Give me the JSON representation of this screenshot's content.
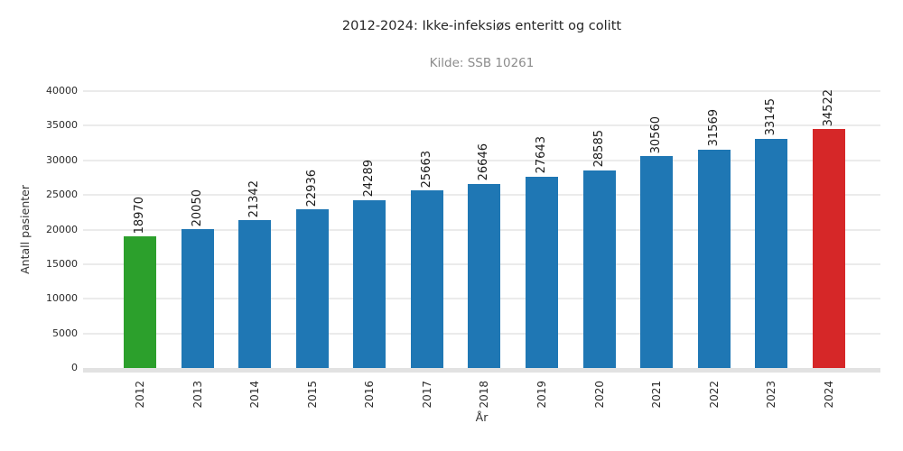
{
  "chart_data": {
    "type": "bar",
    "title": "2012-2024: Ikke-infeksiøs enteritt og colitt",
    "subtitle": "Kilde: SSB 10261",
    "xlabel": "År",
    "ylabel": "Antall pasienter",
    "categories": [
      "2012",
      "2013",
      "2014",
      "2015",
      "2016",
      "2017",
      "2018",
      "2019",
      "2020",
      "2021",
      "2022",
      "2023",
      "2024"
    ],
    "values": [
      18970,
      20050,
      21342,
      22936,
      24289,
      25663,
      26646,
      27643,
      28585,
      30560,
      31569,
      33145,
      34522
    ],
    "bar_colors": [
      "#2ca02c",
      "#1f77b4",
      "#1f77b4",
      "#1f77b4",
      "#1f77b4",
      "#1f77b4",
      "#1f77b4",
      "#1f77b4",
      "#1f77b4",
      "#1f77b4",
      "#1f77b4",
      "#1f77b4",
      "#d62728"
    ],
    "value_label_rotation": 90,
    "xtick_rotation": 90,
    "ylim": [
      0,
      40000
    ],
    "yticks": [
      0,
      5000,
      10000,
      15000,
      20000,
      25000,
      30000,
      35000,
      40000
    ],
    "ytick_labels": [
      "0",
      "5000",
      "10000",
      "15000",
      "20000",
      "25000",
      "30000",
      "35000",
      "40000"
    ],
    "grid": "horizontal",
    "legend": "none",
    "colors": {
      "bar_default": "#1f77b4",
      "bar_first": "#2ca02c",
      "bar_last": "#d62728",
      "gridline": "#ebebeb",
      "baseline": "#e2e2e2",
      "subtitle": "#8c8c8c"
    }
  }
}
